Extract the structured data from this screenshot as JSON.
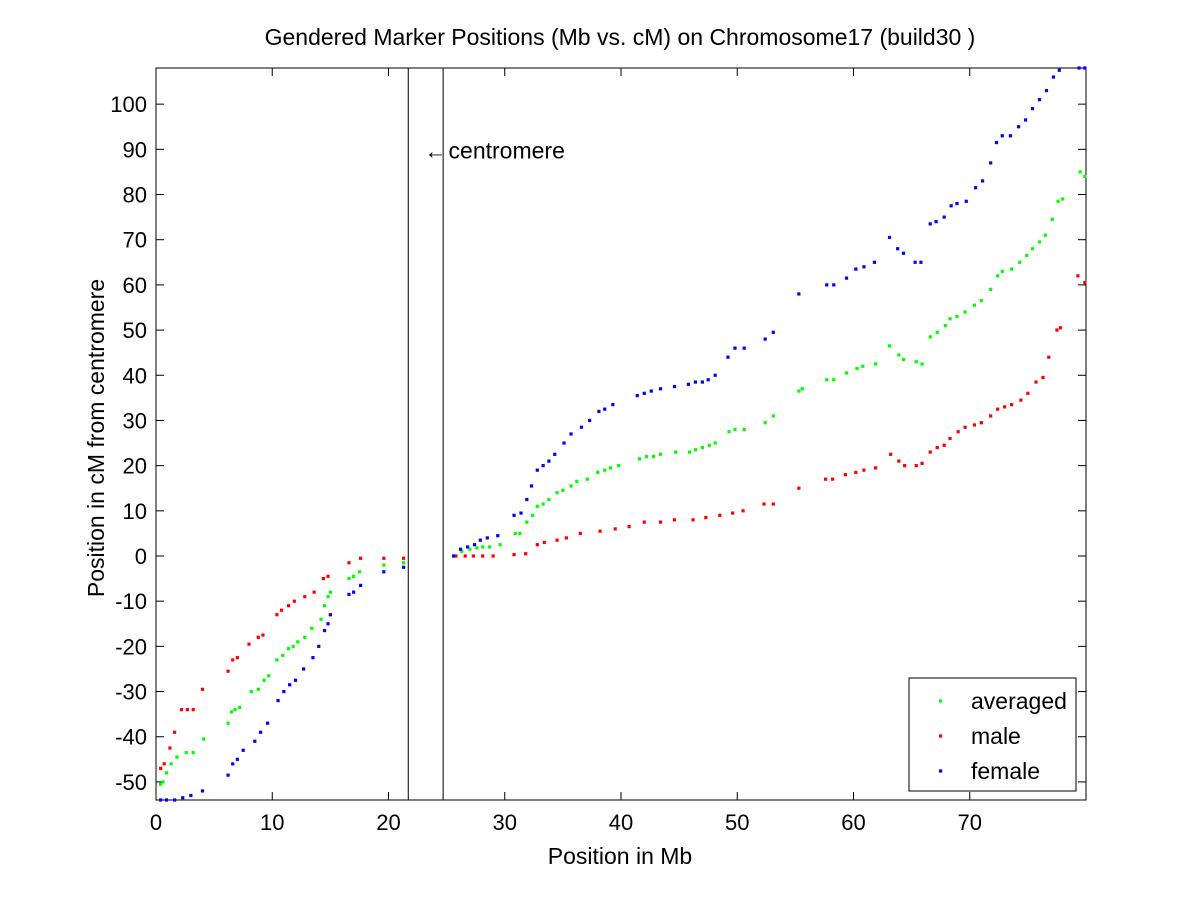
{
  "chart_data": {
    "type": "scatter",
    "title": "Gendered Marker Positions (Mb vs. cM) on Chromosome17 (build30 )",
    "xlabel": "Position in Mb",
    "ylabel": "Position in cM from centromere",
    "xlim": [
      0,
      80
    ],
    "ylim": [
      -54,
      108
    ],
    "xticks": [
      0,
      10,
      20,
      30,
      40,
      50,
      60,
      70
    ],
    "yticks": [
      -50,
      -40,
      -30,
      -20,
      -10,
      0,
      10,
      20,
      30,
      40,
      50,
      60,
      70,
      80,
      90,
      100
    ],
    "grid": false,
    "legend_position": "bottom-right",
    "centromere": {
      "lines_x": [
        21.7,
        24.7
      ],
      "label": "centromere",
      "arrow": "←",
      "label_x": 23.1,
      "label_y": 88
    },
    "series": [
      {
        "name": "averaged",
        "color": "#00ff00",
        "points": [
          [
            0.4,
            -50.5
          ],
          [
            0.6,
            -50
          ],
          [
            0.9,
            -48
          ],
          [
            1.3,
            -46
          ],
          [
            1.8,
            -44.5
          ],
          [
            2.6,
            -43.5
          ],
          [
            3.2,
            -43.5
          ],
          [
            4.1,
            -40.5
          ],
          [
            6.2,
            -37
          ],
          [
            6.5,
            -34.5
          ],
          [
            6.8,
            -34
          ],
          [
            7.2,
            -33.5
          ],
          [
            8.2,
            -30
          ],
          [
            8.8,
            -29.5
          ],
          [
            9.3,
            -27.5
          ],
          [
            9.7,
            -26.5
          ],
          [
            10.4,
            -23
          ],
          [
            10.9,
            -22
          ],
          [
            11.4,
            -20.5
          ],
          [
            11.8,
            -20
          ],
          [
            12.2,
            -19
          ],
          [
            12.8,
            -18
          ],
          [
            13.4,
            -16
          ],
          [
            14.2,
            -14
          ],
          [
            14.5,
            -11
          ],
          [
            14.8,
            -9
          ],
          [
            15.0,
            -8
          ],
          [
            16.6,
            -5
          ],
          [
            17.0,
            -4.5
          ],
          [
            17.5,
            -3.5
          ],
          [
            19.6,
            -2
          ],
          [
            21.3,
            -1.5
          ],
          [
            25.6,
            0
          ],
          [
            26.3,
            1
          ],
          [
            27.0,
            1.5
          ],
          [
            27.6,
            1.8
          ],
          [
            28.1,
            2
          ],
          [
            28.7,
            2
          ],
          [
            29.6,
            2.5
          ],
          [
            30.9,
            5
          ],
          [
            31.3,
            5
          ],
          [
            31.9,
            7.5
          ],
          [
            32.4,
            9
          ],
          [
            32.8,
            11
          ],
          [
            33.3,
            11.5
          ],
          [
            33.8,
            12.5
          ],
          [
            34.5,
            14
          ],
          [
            35.0,
            14.5
          ],
          [
            35.7,
            15.5
          ],
          [
            36.2,
            16.5
          ],
          [
            37.1,
            17
          ],
          [
            38.0,
            18.5
          ],
          [
            38.6,
            19
          ],
          [
            39.1,
            19.5
          ],
          [
            39.8,
            20
          ],
          [
            41.6,
            21.5
          ],
          [
            42.2,
            22
          ],
          [
            42.8,
            22
          ],
          [
            43.4,
            22.5
          ],
          [
            44.7,
            23
          ],
          [
            45.9,
            23
          ],
          [
            46.4,
            23.5
          ],
          [
            47.0,
            24
          ],
          [
            47.6,
            24.5
          ],
          [
            48.1,
            25
          ],
          [
            49.3,
            27.5
          ],
          [
            49.8,
            28
          ],
          [
            50.6,
            28
          ],
          [
            52.4,
            29.5
          ],
          [
            53.1,
            31
          ],
          [
            55.3,
            36.5
          ],
          [
            55.6,
            37
          ],
          [
            57.7,
            39
          ],
          [
            58.3,
            39
          ],
          [
            59.4,
            40.5
          ],
          [
            60.3,
            41.5
          ],
          [
            60.8,
            42
          ],
          [
            61.9,
            42.5
          ],
          [
            63.1,
            46.5
          ],
          [
            63.9,
            44.5
          ],
          [
            64.3,
            43.5
          ],
          [
            65.4,
            43
          ],
          [
            65.9,
            42.5
          ],
          [
            66.6,
            48.5
          ],
          [
            67.2,
            49.5
          ],
          [
            67.9,
            51
          ],
          [
            68.3,
            52.5
          ],
          [
            68.9,
            53
          ],
          [
            69.6,
            54
          ],
          [
            70.4,
            55.5
          ],
          [
            71.0,
            56.5
          ],
          [
            71.8,
            59
          ],
          [
            72.4,
            62
          ],
          [
            72.8,
            63
          ],
          [
            73.6,
            63.5
          ],
          [
            74.3,
            65
          ],
          [
            74.9,
            66.5
          ],
          [
            75.4,
            68
          ],
          [
            76.0,
            69.5
          ],
          [
            76.5,
            71
          ],
          [
            77.1,
            74.5
          ],
          [
            77.6,
            78.5
          ],
          [
            78.0,
            79
          ],
          [
            79.5,
            85
          ],
          [
            79.9,
            84
          ]
        ]
      },
      {
        "name": "male",
        "color": "#ff0000",
        "points": [
          [
            0.4,
            -47
          ],
          [
            0.7,
            -46
          ],
          [
            1.2,
            -42.5
          ],
          [
            1.6,
            -39
          ],
          [
            2.2,
            -34
          ],
          [
            2.7,
            -34
          ],
          [
            3.2,
            -34
          ],
          [
            4.0,
            -29.5
          ],
          [
            6.2,
            -25.5
          ],
          [
            6.6,
            -23
          ],
          [
            7.0,
            -22.5
          ],
          [
            8.0,
            -19.5
          ],
          [
            8.8,
            -18
          ],
          [
            9.2,
            -17.5
          ],
          [
            10.4,
            -13
          ],
          [
            10.8,
            -12
          ],
          [
            11.4,
            -11
          ],
          [
            11.9,
            -10
          ],
          [
            12.8,
            -9
          ],
          [
            13.6,
            -8
          ],
          [
            14.4,
            -5
          ],
          [
            14.8,
            -4.5
          ],
          [
            16.6,
            -1.5
          ],
          [
            17.6,
            -0.5
          ],
          [
            19.6,
            -0.5
          ],
          [
            21.3,
            -0.5
          ],
          [
            25.8,
            0
          ],
          [
            26.6,
            0
          ],
          [
            27.3,
            0
          ],
          [
            28.1,
            0
          ],
          [
            29.0,
            0
          ],
          [
            30.8,
            0.3
          ],
          [
            31.8,
            0.5
          ],
          [
            32.8,
            2.5
          ],
          [
            33.4,
            3
          ],
          [
            34.5,
            3.5
          ],
          [
            35.3,
            4
          ],
          [
            36.5,
            5
          ],
          [
            38.2,
            5.5
          ],
          [
            39.5,
            6
          ],
          [
            40.7,
            6.5
          ],
          [
            42.0,
            7.5
          ],
          [
            43.4,
            7.5
          ],
          [
            44.6,
            8
          ],
          [
            46.2,
            8
          ],
          [
            47.3,
            8.5
          ],
          [
            48.5,
            9
          ],
          [
            49.6,
            9.5
          ],
          [
            50.5,
            10
          ],
          [
            52.3,
            11.5
          ],
          [
            53.1,
            11.5
          ],
          [
            55.3,
            15
          ],
          [
            57.6,
            17
          ],
          [
            58.2,
            17
          ],
          [
            59.3,
            18
          ],
          [
            60.2,
            18.5
          ],
          [
            60.9,
            19
          ],
          [
            61.9,
            19.5
          ],
          [
            63.2,
            22.5
          ],
          [
            63.9,
            21
          ],
          [
            64.4,
            20
          ],
          [
            65.4,
            20
          ],
          [
            65.9,
            20.5
          ],
          [
            66.6,
            23
          ],
          [
            67.2,
            24
          ],
          [
            67.8,
            24.5
          ],
          [
            68.3,
            26
          ],
          [
            69.0,
            27.5
          ],
          [
            69.6,
            28.5
          ],
          [
            70.4,
            29
          ],
          [
            71.0,
            29.5
          ],
          [
            71.8,
            31
          ],
          [
            72.4,
            32.5
          ],
          [
            73.0,
            33
          ],
          [
            73.6,
            33.5
          ],
          [
            74.4,
            34.5
          ],
          [
            75.0,
            36
          ],
          [
            75.7,
            38.5
          ],
          [
            76.3,
            39.5
          ],
          [
            76.8,
            44
          ],
          [
            77.5,
            50
          ],
          [
            77.8,
            50.5
          ],
          [
            79.3,
            62
          ],
          [
            79.9,
            60.5
          ]
        ]
      },
      {
        "name": "female",
        "color": "#0000ff",
        "points": [
          [
            0.4,
            -54
          ],
          [
            0.9,
            -54
          ],
          [
            1.6,
            -54
          ],
          [
            2.3,
            -53.5
          ],
          [
            3.0,
            -53
          ],
          [
            4.0,
            -52
          ],
          [
            6.2,
            -48.5
          ],
          [
            6.6,
            -46
          ],
          [
            7.0,
            -45
          ],
          [
            7.5,
            -43
          ],
          [
            8.5,
            -41
          ],
          [
            9.0,
            -39
          ],
          [
            9.6,
            -37
          ],
          [
            10.5,
            -32
          ],
          [
            11.0,
            -30
          ],
          [
            11.5,
            -28.5
          ],
          [
            12.0,
            -27.5
          ],
          [
            12.7,
            -25
          ],
          [
            13.5,
            -22.5
          ],
          [
            14.0,
            -20
          ],
          [
            14.5,
            -16.5
          ],
          [
            14.8,
            -15
          ],
          [
            15.0,
            -13
          ],
          [
            16.6,
            -8.5
          ],
          [
            17.0,
            -8
          ],
          [
            17.6,
            -6.5
          ],
          [
            19.6,
            -3.5
          ],
          [
            21.3,
            -2.5
          ],
          [
            25.6,
            0
          ],
          [
            26.2,
            1.5
          ],
          [
            26.8,
            2
          ],
          [
            27.4,
            2.5
          ],
          [
            27.9,
            3.5
          ],
          [
            28.5,
            4
          ],
          [
            29.4,
            4.5
          ],
          [
            30.8,
            9
          ],
          [
            31.4,
            9.5
          ],
          [
            31.9,
            12.5
          ],
          [
            32.3,
            15.5
          ],
          [
            32.8,
            19
          ],
          [
            33.3,
            20
          ],
          [
            33.8,
            21
          ],
          [
            34.3,
            22.5
          ],
          [
            35.1,
            25
          ],
          [
            35.7,
            27
          ],
          [
            36.6,
            28.5
          ],
          [
            37.3,
            30
          ],
          [
            38.1,
            32
          ],
          [
            38.6,
            32.5
          ],
          [
            39.3,
            33.5
          ],
          [
            41.4,
            35.5
          ],
          [
            42.0,
            36
          ],
          [
            42.6,
            36.5
          ],
          [
            43.4,
            37
          ],
          [
            44.6,
            37.5
          ],
          [
            45.8,
            38
          ],
          [
            46.4,
            38.5
          ],
          [
            47.0,
            38.5
          ],
          [
            47.5,
            39
          ],
          [
            48.1,
            40
          ],
          [
            49.2,
            44
          ],
          [
            49.8,
            46
          ],
          [
            50.6,
            46
          ],
          [
            52.4,
            48
          ],
          [
            53.1,
            49.5
          ],
          [
            55.3,
            58
          ],
          [
            57.7,
            60
          ],
          [
            58.3,
            60
          ],
          [
            59.4,
            61.5
          ],
          [
            60.2,
            63.5
          ],
          [
            60.9,
            64
          ],
          [
            61.8,
            65
          ],
          [
            63.1,
            70.5
          ],
          [
            63.8,
            68
          ],
          [
            64.3,
            67
          ],
          [
            65.3,
            65
          ],
          [
            65.8,
            65
          ],
          [
            66.6,
            73.5
          ],
          [
            67.1,
            74
          ],
          [
            67.8,
            75
          ],
          [
            68.4,
            77.5
          ],
          [
            68.9,
            78
          ],
          [
            69.7,
            78.5
          ],
          [
            70.5,
            81.5
          ],
          [
            71.1,
            83
          ],
          [
            71.8,
            87
          ],
          [
            72.3,
            91.5
          ],
          [
            72.8,
            93
          ],
          [
            73.5,
            93
          ],
          [
            74.2,
            95
          ],
          [
            74.8,
            96.5
          ],
          [
            75.4,
            99
          ],
          [
            76.0,
            101
          ],
          [
            76.6,
            103
          ],
          [
            77.2,
            106
          ],
          [
            77.7,
            107.5
          ],
          [
            79.4,
            108
          ],
          [
            79.9,
            108
          ]
        ]
      }
    ]
  }
}
